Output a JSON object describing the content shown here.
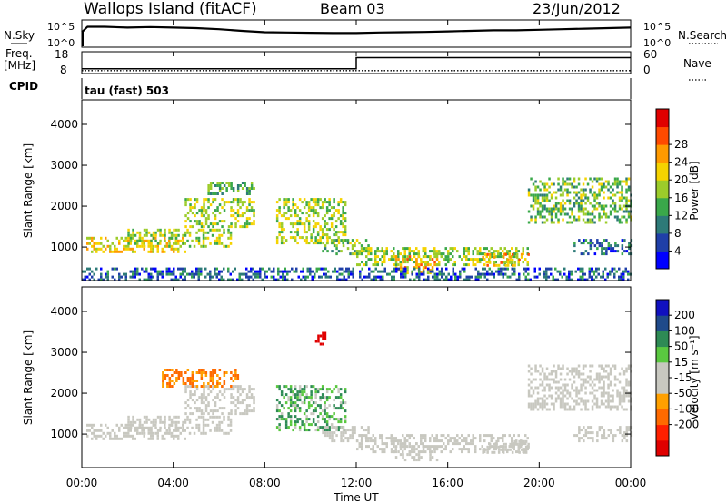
{
  "header": {
    "station": "Wallops Island (fitACF)",
    "beam": "Beam 03",
    "date": "23/Jun/2012"
  },
  "panels": {
    "nsky_label": "N.Sky",
    "nsky_ticks": [
      "10^5",
      "10^0"
    ],
    "nsearch_label": "N.Search",
    "nsearch_ticks": [
      "10^5",
      "10^0"
    ],
    "freq_label": "Freq.",
    "freq_unit": "[MHz]",
    "freq_ticks": [
      "18",
      "8"
    ],
    "nave_label": "Nave",
    "nave_ticks": [
      "60",
      "0"
    ],
    "cpid_label": "CPID",
    "cpid_text": "tau (fast) 503"
  },
  "chart_data": [
    {
      "type": "line",
      "name": "noise",
      "x_hours": [
        0,
        0.25,
        1,
        2,
        3,
        4,
        5,
        6,
        7,
        8,
        9,
        10,
        11,
        12,
        13,
        14,
        15,
        16,
        17,
        18,
        19,
        20,
        21,
        22,
        23,
        24
      ],
      "nsky_frac": [
        0.55,
        0.75,
        0.75,
        0.72,
        0.74,
        0.72,
        0.7,
        0.66,
        0.6,
        0.55,
        0.54,
        0.53,
        0.52,
        0.52,
        0.54,
        0.55,
        0.56,
        0.58,
        0.6,
        0.62,
        0.62,
        0.64,
        0.66,
        0.68,
        0.7,
        0.72
      ]
    },
    {
      "type": "line",
      "name": "freq_nave",
      "freq_steps": [
        {
          "from": 0.0,
          "to": 12.0,
          "mhz": 10.2
        },
        {
          "from": 12.0,
          "to": 24.0,
          "mhz": 15.3
        }
      ],
      "nave_level": 8
    },
    {
      "type": "heatmap",
      "name": "power",
      "xlabel": "Time UT",
      "ylabel": "Slant Range [km]",
      "x_ticks": [
        "00:00",
        "04:00",
        "08:00",
        "12:00",
        "16:00",
        "20:00",
        "00:00"
      ],
      "y_ticks": [
        1000,
        2000,
        3000,
        4000
      ],
      "xlim_hours": [
        0,
        24
      ],
      "ylim_km": [
        180,
        4600
      ],
      "colorbar_label": "Power [dB]",
      "colorbar_ticks": [
        4,
        8,
        12,
        16,
        20,
        24,
        28
      ],
      "colorbar_colors": [
        "#0000ff",
        "#1f3fa8",
        "#2d7a78",
        "#3aa84a",
        "#9ccc2a",
        "#f5d300",
        "#ff9a00",
        "#ff4a00",
        "#e00000"
      ],
      "echo_bands": [
        {
          "t": [
            0.2,
            4.5
          ],
          "r": [
            900,
            1250
          ],
          "val": 22
        },
        {
          "t": [
            2.0,
            6.5
          ],
          "r": [
            1050,
            1450
          ],
          "val": 18
        },
        {
          "t": [
            4.5,
            7.5
          ],
          "r": [
            1500,
            2200
          ],
          "val": 18
        },
        {
          "t": [
            5.5,
            7.5
          ],
          "r": [
            2300,
            2600
          ],
          "val": 14
        },
        {
          "t": [
            8.5,
            11.5
          ],
          "r": [
            1100,
            2200
          ],
          "val": 18
        },
        {
          "t": [
            10.5,
            12.5
          ],
          "r": [
            850,
            1200
          ],
          "val": 16
        },
        {
          "t": [
            12.0,
            19.5
          ],
          "r": [
            550,
            1000
          ],
          "val": 18
        },
        {
          "t": [
            13.5,
            15.5
          ],
          "r": [
            400,
            800
          ],
          "val": 24
        },
        {
          "t": [
            17.5,
            19.5
          ],
          "r": [
            550,
            850
          ],
          "val": 24
        },
        {
          "t": [
            19.5,
            24.0
          ],
          "r": [
            1600,
            2700
          ],
          "val": 16
        },
        {
          "t": [
            21.5,
            24.0
          ],
          "r": [
            850,
            1200
          ],
          "val": 8
        },
        {
          "t": [
            0.0,
            24.0
          ],
          "r": [
            180,
            500
          ],
          "val": 8
        }
      ]
    },
    {
      "type": "heatmap",
      "name": "velocity",
      "xlabel": "Time UT",
      "ylabel": "Slant Range [km]",
      "x_ticks": [
        "00:00",
        "04:00",
        "08:00",
        "12:00",
        "16:00",
        "20:00",
        "00:00"
      ],
      "y_ticks": [
        1000,
        2000,
        3000,
        4000
      ],
      "xlim_hours": [
        0,
        24
      ],
      "ylim_km": [
        180,
        4600
      ],
      "colorbar_label": "Velocity [m s⁻¹]",
      "colorbar_ticks": [
        "200",
        "100",
        "50",
        "15",
        "-15",
        "-50",
        "-100",
        "-200"
      ],
      "colorbar_colors": [
        "#1010c0",
        "#1f4a8a",
        "#2e8a55",
        "#5ac840",
        "#c8c8c0",
        "#c8c8c0",
        "#ffa000",
        "#ff6a00",
        "#ff2000",
        "#e00000"
      ],
      "echo_bands": [
        {
          "t": [
            0.2,
            4.5
          ],
          "r": [
            900,
            1250
          ],
          "val": 0
        },
        {
          "t": [
            2.0,
            6.5
          ],
          "r": [
            1050,
            1450
          ],
          "val": 0
        },
        {
          "t": [
            4.5,
            7.5
          ],
          "r": [
            1500,
            2200
          ],
          "val": 0
        },
        {
          "t": [
            3.5,
            6.8
          ],
          "r": [
            2200,
            2600
          ],
          "val": -60
        },
        {
          "t": [
            8.5,
            11.5
          ],
          "r": [
            1100,
            2200
          ],
          "val": 30
        },
        {
          "t": [
            10.5,
            12.5
          ],
          "r": [
            850,
            1200
          ],
          "val": 0
        },
        {
          "t": [
            12.0,
            19.5
          ],
          "r": [
            550,
            1000
          ],
          "val": 0
        },
        {
          "t": [
            13.5,
            15.5
          ],
          "r": [
            400,
            800
          ],
          "val": 0
        },
        {
          "t": [
            17.5,
            19.5
          ],
          "r": [
            550,
            850
          ],
          "val": 0
        },
        {
          "t": [
            19.5,
            24.0
          ],
          "r": [
            1600,
            2700
          ],
          "val": 0
        },
        {
          "t": [
            21.5,
            24.0
          ],
          "r": [
            850,
            1200
          ],
          "val": 0
        },
        {
          "t": [
            10.2,
            10.6
          ],
          "r": [
            3200,
            3500
          ],
          "val": -200
        }
      ]
    }
  ]
}
